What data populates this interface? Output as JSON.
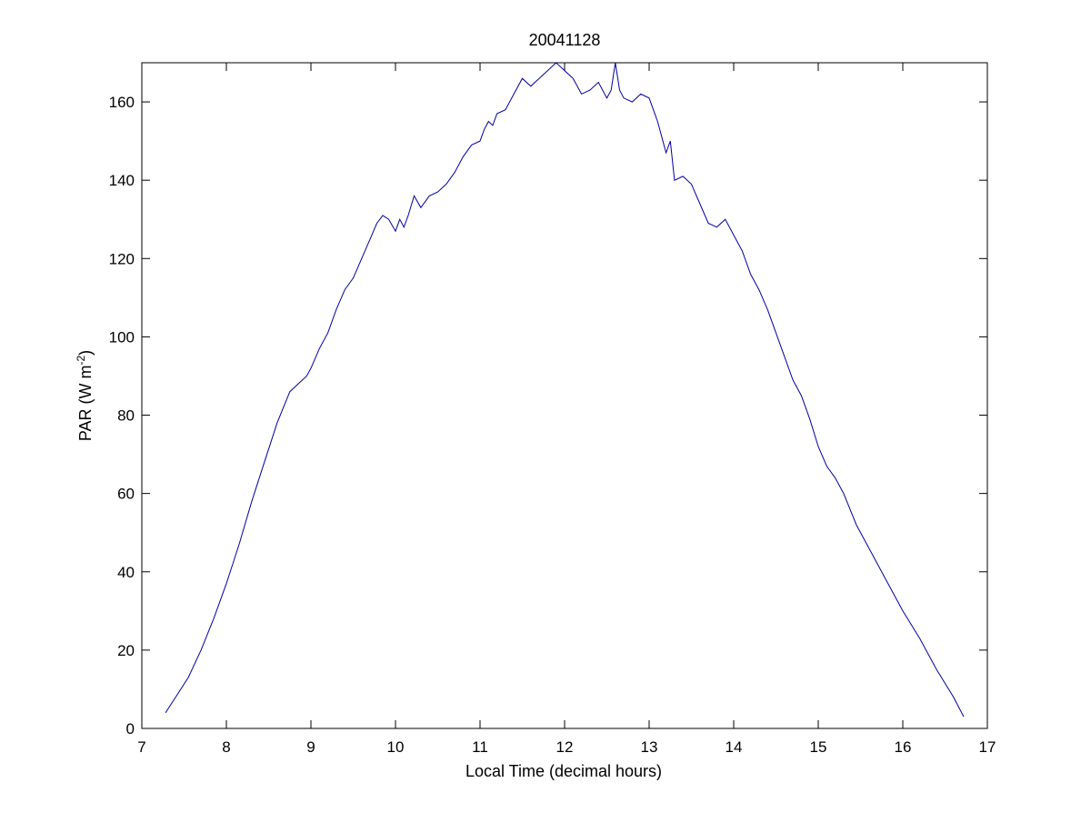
{
  "chart_data": {
    "type": "line",
    "title": "20041128",
    "xlabel": "Local Time (decimal hours)",
    "ylabel_main": "PAR (W m",
    "ylabel_sup": "-2",
    "ylabel_close": ")",
    "xlim": [
      7,
      17
    ],
    "ylim": [
      0,
      170
    ],
    "xticks": [
      7,
      8,
      9,
      10,
      11,
      12,
      13,
      14,
      15,
      16,
      17
    ],
    "yticks": [
      0,
      20,
      40,
      60,
      80,
      100,
      120,
      140,
      160
    ],
    "grid": false,
    "line_color": "#0000a0",
    "series": [
      {
        "x": [
          7.28,
          7.4,
          7.55,
          7.7,
          7.85,
          8.0,
          8.15,
          8.3,
          8.45,
          8.6,
          8.75,
          8.85,
          8.95,
          9.0,
          9.1,
          9.2,
          9.3,
          9.4,
          9.5,
          9.6,
          9.7,
          9.78,
          9.85,
          9.92,
          10.0,
          10.05,
          10.1,
          10.15,
          10.22,
          10.3,
          10.4,
          10.5,
          10.6,
          10.7,
          10.8,
          10.9,
          11.0,
          11.05,
          11.1,
          11.15,
          11.2,
          11.3,
          11.4,
          11.5,
          11.6,
          11.7,
          11.8,
          11.9,
          12.0,
          12.1,
          12.2,
          12.3,
          12.4,
          12.5,
          12.55,
          12.6,
          12.65,
          12.7,
          12.8,
          12.9,
          13.0,
          13.1,
          13.2,
          13.25,
          13.3,
          13.4,
          13.5,
          13.6,
          13.7,
          13.8,
          13.9,
          14.0,
          14.1,
          14.2,
          14.3,
          14.4,
          14.5,
          14.6,
          14.7,
          14.8,
          14.9,
          15.0,
          15.1,
          15.2,
          15.3,
          15.45,
          15.6,
          15.8,
          16.0,
          16.2,
          16.4,
          16.6,
          16.72
        ],
        "y": [
          4,
          8,
          13,
          20,
          28,
          37,
          47,
          58,
          68,
          78,
          86,
          88,
          90,
          92,
          97,
          101,
          107,
          112,
          115,
          120,
          125,
          129,
          131,
          130,
          127,
          130,
          128,
          131,
          136,
          133,
          136,
          137,
          139,
          142,
          146,
          149,
          150,
          153,
          155,
          154,
          157,
          158,
          162,
          166,
          164,
          166,
          168,
          170,
          168,
          166,
          162,
          163,
          165,
          161,
          163,
          170,
          163,
          161,
          160,
          162,
          161,
          155,
          147,
          150,
          140,
          141,
          139,
          134,
          129,
          128,
          130,
          126,
          122,
          116,
          112,
          107,
          101,
          95,
          89,
          85,
          79,
          72,
          67,
          64,
          60,
          52,
          46,
          38,
          30,
          23,
          15,
          8,
          3
        ]
      }
    ]
  }
}
